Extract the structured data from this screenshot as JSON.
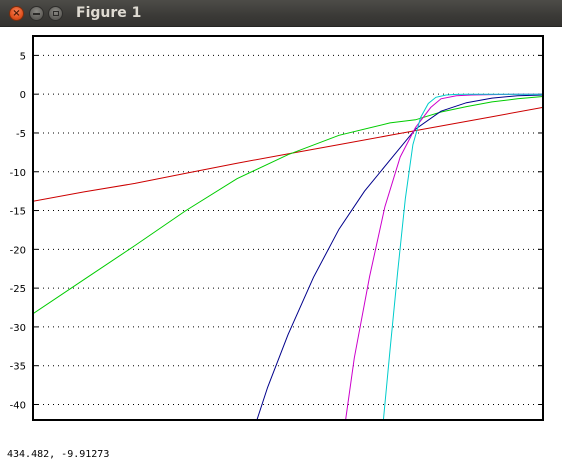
{
  "window": {
    "title": "Figure 1",
    "close_glyph": "×",
    "icons": [
      "close-icon",
      "minimize-icon",
      "maximize-icon"
    ]
  },
  "status": {
    "coords": "434.482, -9.91273"
  },
  "chart_data": {
    "type": "line",
    "title": "",
    "xlabel": "",
    "ylabel": "",
    "xlim": [
      0,
      1
    ],
    "ylim": [
      -42,
      7.5
    ],
    "yticks": [
      5,
      0,
      -5,
      -10,
      -15,
      -20,
      -25,
      -30,
      -35,
      -40
    ],
    "xticks": [],
    "grid": true,
    "grid_style": "dotted horizontal",
    "series": [
      {
        "color": "#cc0000",
        "x": [
          0,
          0.1,
          0.2,
          0.3,
          0.4,
          0.5,
          0.6,
          0.7,
          0.75,
          0.8,
          0.9,
          1.0
        ],
        "y": [
          -13.8,
          -12.6,
          -11.5,
          -10.2,
          -8.9,
          -7.7,
          -6.5,
          -5.3,
          -4.7,
          -4.1,
          -2.9,
          -1.7
        ]
      },
      {
        "color": "#00cc00",
        "x": [
          0,
          0.1,
          0.2,
          0.3,
          0.4,
          0.5,
          0.6,
          0.7,
          0.75,
          0.8,
          0.85,
          0.9,
          0.95,
          1.0
        ],
        "y": [
          -28.3,
          -23.9,
          -19.5,
          -15.0,
          -10.9,
          -7.8,
          -5.3,
          -3.7,
          -3.3,
          -2.3,
          -1.6,
          -1.0,
          -0.6,
          -0.3
        ]
      },
      {
        "color": "#00008b",
        "x": [
          0.439,
          0.46,
          0.5,
          0.55,
          0.6,
          0.65,
          0.7,
          0.75,
          0.8,
          0.85,
          0.9,
          0.95,
          1.0
        ],
        "y": [
          -42,
          -37.8,
          -31.0,
          -23.6,
          -17.4,
          -12.5,
          -8.5,
          -4.5,
          -2.2,
          -1.1,
          -0.5,
          -0.2,
          -0.1
        ]
      },
      {
        "color": "#cc00cc",
        "x": [
          0.613,
          0.63,
          0.66,
          0.69,
          0.72,
          0.75,
          0.78,
          0.8,
          0.83,
          0.86,
          0.9,
          0.95,
          1.0
        ],
        "y": [
          -42,
          -34.0,
          -23.5,
          -14.5,
          -8.1,
          -4.3,
          -1.7,
          -0.6,
          -0.2,
          -0.1,
          -0.05,
          -0.02,
          0
        ]
      },
      {
        "color": "#00cccc",
        "x": [
          0.687,
          0.7,
          0.715,
          0.73,
          0.745,
          0.76,
          0.775,
          0.79,
          0.81,
          0.83,
          0.85,
          0.9,
          0.95,
          1.0
        ],
        "y": [
          -42,
          -33.0,
          -23.0,
          -13.5,
          -6.5,
          -3.0,
          -1.2,
          -0.4,
          -0.1,
          -0.03,
          -0.01,
          0,
          0,
          0
        ]
      }
    ]
  }
}
